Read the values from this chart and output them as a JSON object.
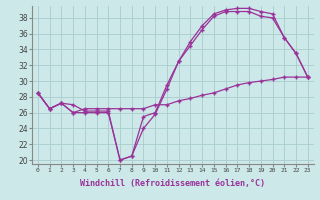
{
  "xlabel": "Windchill (Refroidissement éolien,°C)",
  "hours": [
    0,
    1,
    2,
    3,
    4,
    5,
    6,
    7,
    8,
    9,
    10,
    11,
    12,
    13,
    14,
    15,
    16,
    17,
    18,
    19,
    20,
    21,
    22,
    23
  ],
  "line1": [
    28.5,
    26.5,
    27.2,
    27.0,
    26.2,
    26.2,
    26.2,
    20.0,
    20.5,
    25.5,
    26.0,
    29.5,
    32.5,
    35.0,
    37.0,
    38.5,
    39.0,
    39.2,
    39.2,
    38.8,
    38.5,
    35.5,
    33.5,
    30.5
  ],
  "line2": [
    28.5,
    26.5,
    27.2,
    26.0,
    26.0,
    26.0,
    26.0,
    20.0,
    20.5,
    24.0,
    25.8,
    29.0,
    32.5,
    34.5,
    36.5,
    38.2,
    38.8,
    38.8,
    38.8,
    38.2,
    38.0,
    35.5,
    33.5,
    30.5
  ],
  "line3": [
    28.5,
    26.5,
    27.2,
    26.0,
    26.5,
    26.5,
    26.5,
    26.5,
    26.5,
    26.5,
    27.0,
    27.0,
    27.5,
    27.8,
    28.2,
    28.5,
    29.0,
    29.5,
    29.8,
    30.0,
    30.2,
    30.5,
    30.5,
    30.5
  ],
  "line_color": "#993399",
  "bg_color": "#cce8e8",
  "grid_color": "#aacccc",
  "yticks": [
    20,
    22,
    24,
    26,
    28,
    30,
    32,
    34,
    36,
    38
  ],
  "tick_color": "#444444",
  "xlabel_color": "#993399"
}
